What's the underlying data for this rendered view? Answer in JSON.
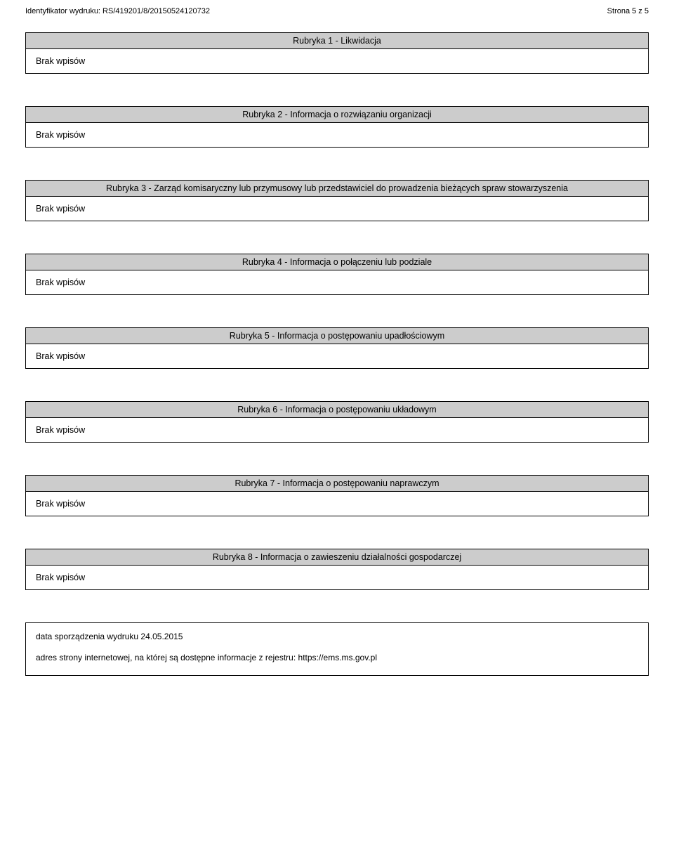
{
  "header": {
    "id_label": "Identyfikator wydruku: RS/419201/8/20150524120732",
    "page_label": "Strona 5 z 5"
  },
  "sections": [
    {
      "title": "Rubryka 1 - Likwidacja",
      "body": "Brak wpisów"
    },
    {
      "title": "Rubryka 2 - Informacja o rozwiązaniu organizacji",
      "body": "Brak wpisów"
    },
    {
      "title": "Rubryka 3 - Zarząd komisaryczny lub przymusowy lub przedstawiciel do prowadzenia bieżących spraw stowarzyszenia",
      "body": "Brak wpisów"
    },
    {
      "title": "Rubryka 4 - Informacja o połączeniu lub podziale",
      "body": "Brak wpisów"
    },
    {
      "title": "Rubryka 5 - Informacja o postępowaniu upadłościowym",
      "body": "Brak wpisów"
    },
    {
      "title": "Rubryka 6 - Informacja o postępowaniu układowym",
      "body": "Brak wpisów"
    },
    {
      "title": "Rubryka 7 - Informacja o postępowaniu naprawczym",
      "body": "Brak wpisów"
    },
    {
      "title": "Rubryka 8 - Informacja o zawieszeniu działalności gospodarczej",
      "body": "Brak wpisów"
    }
  ],
  "footer": {
    "date_line": "data sporządzenia wydruku 24.05.2015",
    "url_line": "adres strony internetowej, na której są dostępne informacje z rejestru: https://ems.ms.gov.pl"
  },
  "colors": {
    "header_bg": "#cccccc",
    "border": "#000000",
    "text": "#000000",
    "page_bg": "#ffffff"
  }
}
